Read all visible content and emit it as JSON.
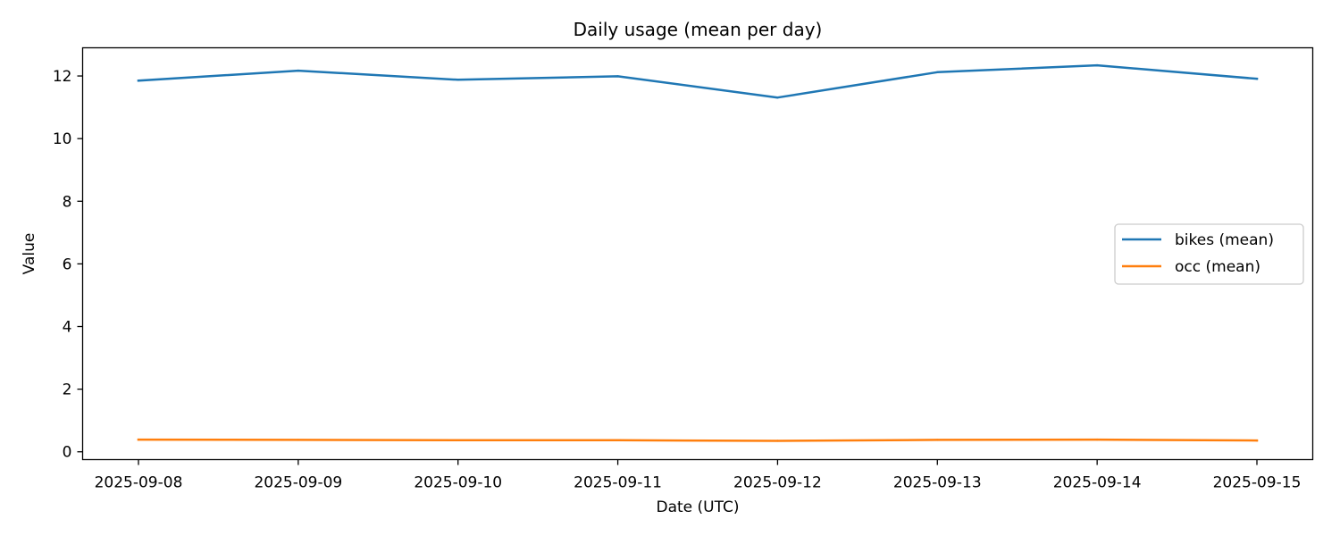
{
  "chart_data": {
    "type": "line",
    "title": "Daily usage (mean per day)",
    "xlabel": "Date (UTC)",
    "ylabel": "Value",
    "x": [
      "2025-09-08",
      "2025-09-09",
      "2025-09-10",
      "2025-09-11",
      "2025-09-12",
      "2025-09-13",
      "2025-09-14",
      "2025-09-15"
    ],
    "ylim": [
      -0.25,
      12.9
    ],
    "yticks": [
      0,
      2,
      4,
      6,
      8,
      10,
      12
    ],
    "grid": false,
    "legend_position": "center-right",
    "series": [
      {
        "name": "bikes (mean)",
        "color": "#1f77b4",
        "values": [
          11.85,
          12.17,
          11.88,
          11.99,
          11.31,
          12.12,
          12.34,
          11.91
        ]
      },
      {
        "name": "occ (mean)",
        "color": "#ff7f0e",
        "values": [
          0.39,
          0.38,
          0.37,
          0.37,
          0.35,
          0.38,
          0.39,
          0.36
        ]
      }
    ]
  }
}
